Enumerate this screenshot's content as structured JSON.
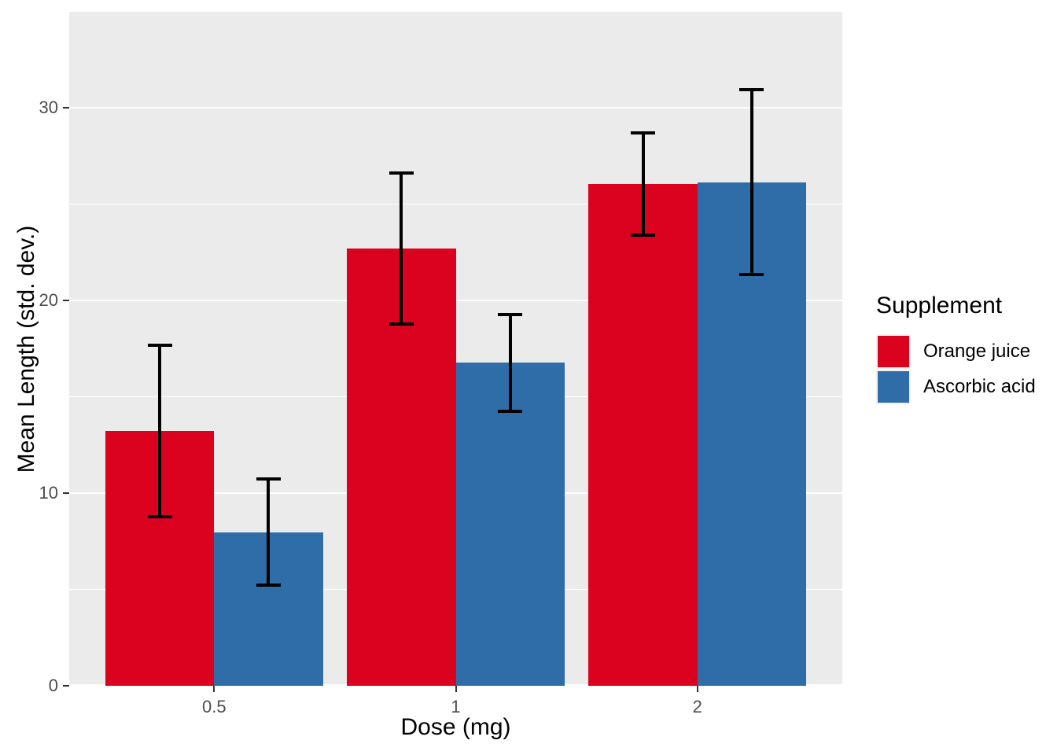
{
  "chart_data": {
    "type": "bar",
    "title": "",
    "xlabel": "Dose (mg)",
    "ylabel": "Mean Length (std. dev.)",
    "categories": [
      "0.5",
      "1",
      "2"
    ],
    "series": [
      {
        "name": "Orange juice",
        "color": "#DB0220",
        "values": [
          13.23,
          22.7,
          26.06
        ],
        "sd": [
          4.46,
          3.91,
          2.66
        ]
      },
      {
        "name": "Ascorbic acid",
        "color": "#2E6DA8",
        "values": [
          7.98,
          16.77,
          26.14
        ],
        "sd": [
          2.75,
          2.52,
          4.8
        ]
      }
    ],
    "error_bars": "mean plus/minus standard deviation",
    "ylim": [
      0,
      35
    ],
    "yticks": [
      "0",
      "10",
      "20",
      "30"
    ],
    "minor_gridlines": [
      5,
      15,
      25
    ],
    "legend": {
      "title": "Supplement",
      "position": "right"
    },
    "layout_hints": {
      "grid": "on",
      "panel_bg": "#EBEBEB",
      "major_grid_color": "#FFFFFF",
      "minor_grid_color": "#FFFFFF",
      "tick_label_color": "#4D4D4D",
      "errorbar_color": "#000000",
      "bar_style": "dodged"
    }
  }
}
